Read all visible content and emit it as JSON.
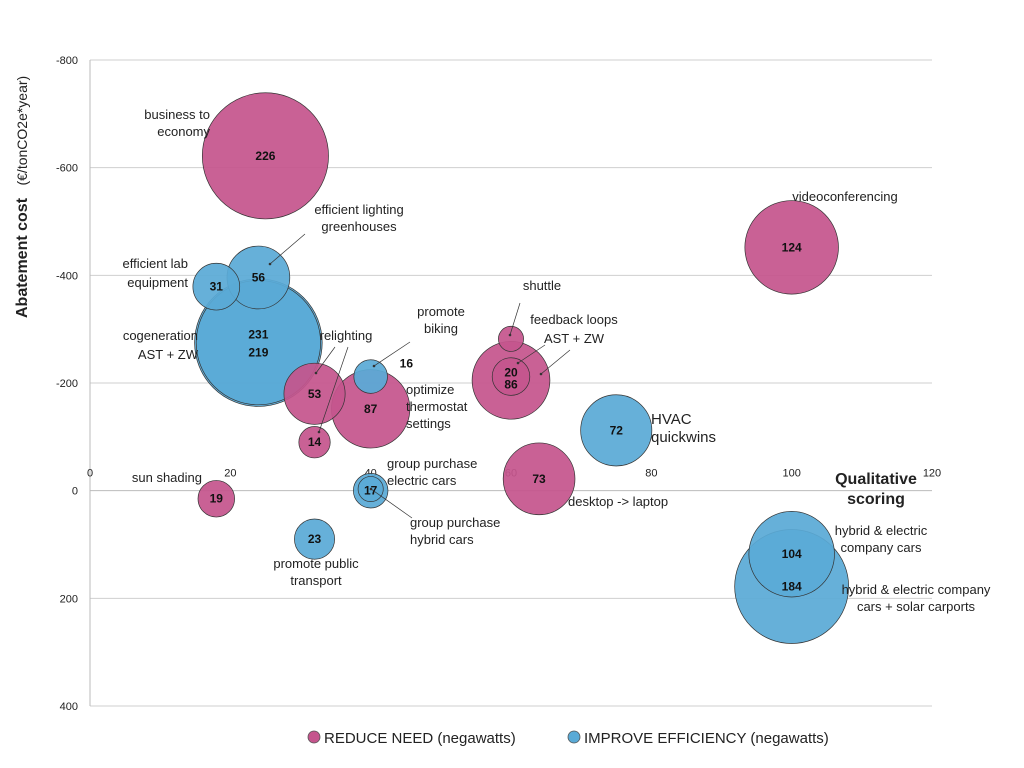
{
  "chart_data": {
    "type": "bubble",
    "xlabel": "Qualitative scoring",
    "xlabel_lines": [
      "Qualitative",
      "scoring"
    ],
    "ylabel": "Abatement cost",
    "ylabel_unit": "(€/tonCO2e*year)",
    "xlim": [
      0,
      120
    ],
    "ylim": [
      -800,
      400
    ],
    "y_inverted": true,
    "x_ticks": [
      0,
      20,
      40,
      60,
      80,
      100,
      120
    ],
    "y_ticks": [
      -800,
      -600,
      -400,
      -200,
      0,
      200,
      400
    ],
    "grid": "horizontal",
    "legend_position": "bottom",
    "series": [
      {
        "name": "REDUCE NEED (negawatts)",
        "color": "#c5558d"
      },
      {
        "name": "IMPROVE EFFICIENCY (negawatts)",
        "color": "#5aaad6"
      }
    ],
    "points": [
      {
        "label": "226",
        "series": 0,
        "x": 25,
        "y": -622,
        "size": 226,
        "anno_lines": [
          "business to",
          "economy"
        ]
      },
      {
        "label": "124",
        "series": 0,
        "x": 100,
        "y": -452,
        "size": 124,
        "anno_lines": [
          "videoconferencing"
        ]
      },
      {
        "label": "56",
        "series": 1,
        "x": 24,
        "y": -396,
        "size": 56,
        "anno_lines": [
          "efficient lighting",
          "greenhouses"
        ]
      },
      {
        "label": "31",
        "series": 1,
        "x": 18,
        "y": -379,
        "size": 31,
        "anno_lines": [
          "efficient lab",
          "equipment"
        ]
      },
      {
        "label": "231",
        "series": 1,
        "x": 24,
        "y": -275,
        "size": 231,
        "anno_lines": [
          "cogeneration",
          "AST + ZW"
        ]
      },
      {
        "label": "219",
        "series": 1,
        "x": 24,
        "y": -275,
        "size": 219,
        "anno_lines": []
      },
      {
        "label": "53",
        "series": 0,
        "x": 32,
        "y": -180,
        "size": 53,
        "anno_lines": [
          "relighting"
        ]
      },
      {
        "label": "14",
        "series": 0,
        "x": 32,
        "y": -90,
        "size": 14,
        "anno_lines": []
      },
      {
        "label": "87",
        "series": 0,
        "x": 40,
        "y": -152,
        "size": 87,
        "anno_lines": [
          "optimize",
          "thermostat",
          "settings"
        ]
      },
      {
        "label": "16",
        "series": 1,
        "x": 40,
        "y": -212,
        "size": 16,
        "anno_lines": [
          "promote",
          "biking"
        ]
      },
      {
        "label": "",
        "series": 0,
        "x": 60,
        "y": -282,
        "size": 9,
        "anno_lines": [
          "shuttle"
        ]
      },
      {
        "label": "20",
        "series": 0,
        "x": 60,
        "y": -212,
        "size": 20,
        "anno_lines": [
          "feedback loops",
          "AST + ZW"
        ]
      },
      {
        "label": "86",
        "series": 0,
        "x": 60,
        "y": -205,
        "size": 86,
        "anno_lines": []
      },
      {
        "label": "72",
        "series": 1,
        "x": 75,
        "y": -112,
        "size": 72,
        "anno_lines": [
          "HVAC",
          "quickwins"
        ]
      },
      {
        "label": "73",
        "series": 0,
        "x": 64,
        "y": -22,
        "size": 73,
        "anno_lines": [
          "desktop -> laptop"
        ]
      },
      {
        "label": "19",
        "series": 0,
        "x": 18,
        "y": 15,
        "size": 19,
        "anno_lines": [
          "sun shading"
        ]
      },
      {
        "label": "17",
        "series": 1,
        "x": 40,
        "y": 0,
        "size": 17,
        "anno_lines": [
          "group purchase",
          "hybrid cars"
        ]
      },
      {
        "label": "",
        "series": 1,
        "x": 40,
        "y": -3,
        "size": 9,
        "anno_lines": [
          "group purchase",
          "electric cars"
        ]
      },
      {
        "label": "23",
        "series": 1,
        "x": 32,
        "y": 90,
        "size": 23,
        "anno_lines": [
          "promote public",
          "transport"
        ]
      },
      {
        "label": "104",
        "series": 1,
        "x": 100,
        "y": 118,
        "size": 104,
        "anno_lines": [
          "hybrid & electric",
          "company cars"
        ]
      },
      {
        "label": "184",
        "series": 1,
        "x": 100,
        "y": 178,
        "size": 184,
        "anno_lines": [
          "hybrid & electric company",
          "cars + solar carports"
        ]
      }
    ]
  }
}
